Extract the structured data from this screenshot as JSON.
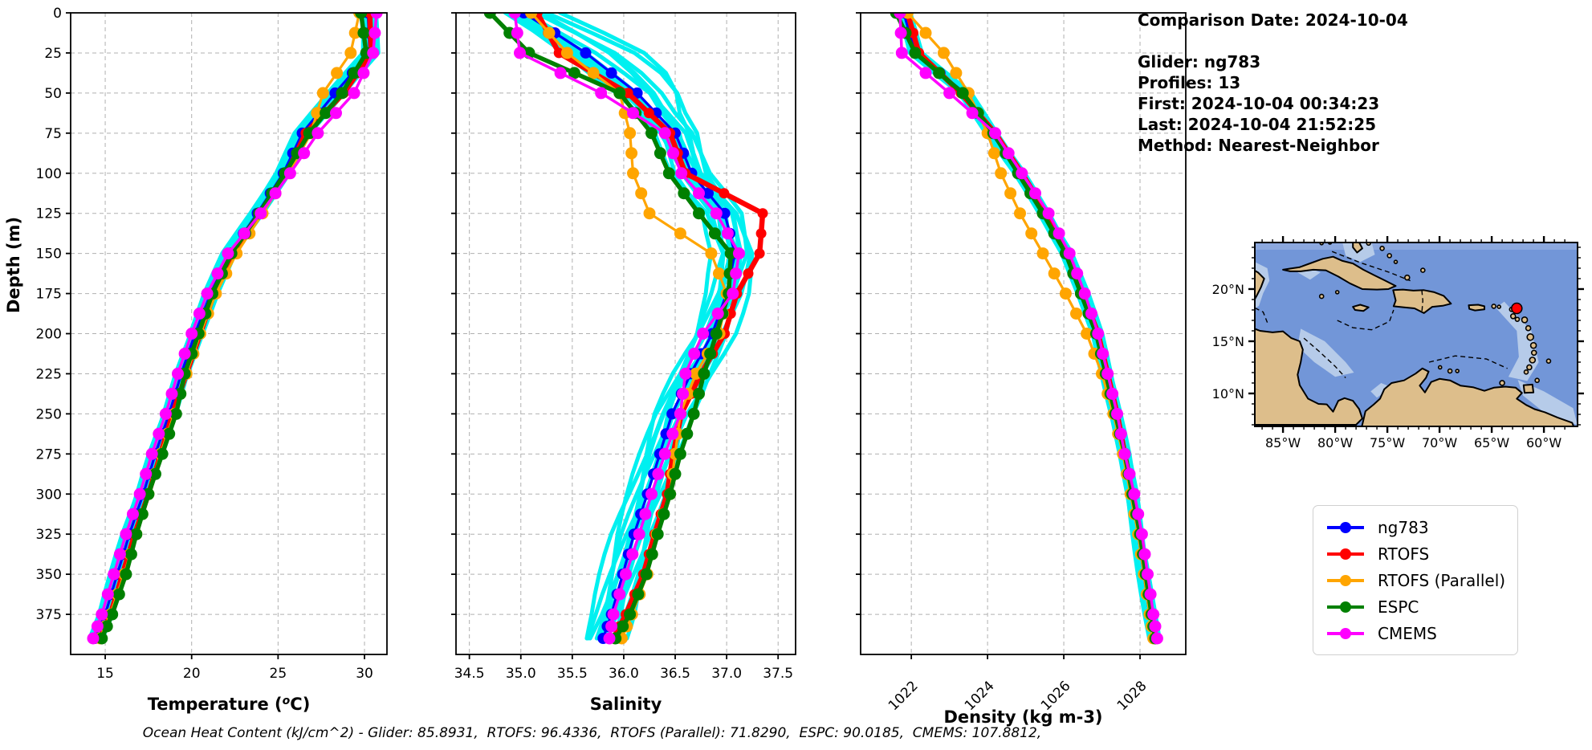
{
  "info_panel": {
    "comparison_date": "Comparison Date: 2024-10-04",
    "glider": "Glider: ng783",
    "profiles": "Profiles: 13",
    "first": "First: 2024-10-04 00:34:23",
    "last": "Last: 2024-10-04 21:52:25",
    "method": "Method: Nearest-Neighbor"
  },
  "footer": {
    "ohc_text": "Ocean Heat Content (kJ/cm^2) - Glider: 85.8931,  RTOFS: 96.4336,  RTOFS (Parallel): 71.8290,  ESPC: 90.0185,  CMEMS: 107.8812,"
  },
  "legend": {
    "items": [
      {
        "label": "ng783",
        "color": "#0000ff"
      },
      {
        "label": "RTOFS",
        "color": "#ff0000"
      },
      {
        "label": "RTOFS (Parallel)",
        "color": "#ffa500"
      },
      {
        "label": "ESPC",
        "color": "#008000"
      },
      {
        "label": "CMEMS",
        "color": "#ff00ff"
      }
    ]
  },
  "map": {
    "lat_tick_labels": [
      "20°N",
      "15°N",
      "10°N"
    ],
    "lat_tick_values": [
      20,
      15,
      10
    ],
    "lon_tick_labels": [
      "85°W",
      "80°W",
      "75°W",
      "70°W",
      "65°W",
      "60°W"
    ],
    "lon_tick_values": [
      85,
      80,
      75,
      70,
      65,
      60
    ],
    "extent": {
      "west": 87.7,
      "east": 56.77,
      "south": 6.85,
      "north": 24.46
    },
    "glider_marker": {
      "lon": 62.6,
      "lat": 18.15,
      "color": "#ff0000"
    },
    "ocean_color": "#7296d8",
    "shallow_color": "#b6cbe9",
    "land_color": "#ddbe8b"
  },
  "chart_data": [
    {
      "type": "line",
      "name": "temperature",
      "xlabel": "Temperature (^oC)",
      "ylabel": "Depth (m)",
      "xlim": [
        13.0,
        31.3
      ],
      "ylim": [
        0,
        400
      ],
      "x_ticks": [
        15,
        20,
        25,
        30
      ],
      "x_tick_labels": [
        "15",
        "20",
        "25",
        "30"
      ],
      "y_ticks": [
        0,
        25,
        50,
        75,
        100,
        125,
        150,
        175,
        200,
        225,
        250,
        275,
        300,
        325,
        350,
        375
      ],
      "rotate_x_tick_labels": false,
      "show_y_tick_labels": true,
      "depths": [
        0,
        25,
        50,
        75,
        100,
        125,
        150,
        175,
        200,
        225,
        250,
        275,
        300,
        325,
        350,
        375,
        390
      ],
      "raw_glider_band": {
        "color": "#00f0f0",
        "profiles": 13,
        "amplitude": 0.3
      },
      "series": [
        {
          "name": "ng783",
          "color": "#0000ff",
          "values": [
            30.2,
            30.3,
            28.3,
            26.4,
            25.3,
            23.8,
            22.2,
            21.1,
            20.2,
            19.4,
            18.7,
            17.9,
            17.2,
            16.4,
            15.7,
            15.0,
            14.4
          ]
        },
        {
          "name": "RTOFS",
          "color": "#ff0000",
          "values": [
            30.3,
            30.4,
            28.8,
            26.6,
            25.5,
            24.0,
            22.4,
            21.3,
            20.5,
            19.7,
            18.9,
            18.2,
            17.5,
            16.7,
            16.0,
            15.3,
            14.7
          ]
        },
        {
          "name": "RTOFS (Parallel)",
          "color": "#ffa500",
          "values": [
            29.7,
            29.2,
            27.6,
            26.9,
            25.6,
            24.1,
            22.6,
            21.4,
            20.5,
            19.7,
            19.0,
            18.2,
            17.5,
            16.8,
            16.1,
            15.3,
            14.7
          ]
        },
        {
          "name": "ESPC",
          "color": "#008000",
          "values": [
            29.8,
            30.1,
            28.7,
            26.8,
            25.4,
            23.9,
            22.3,
            21.2,
            20.4,
            19.6,
            19.1,
            18.3,
            17.5,
            16.8,
            16.2,
            15.4,
            14.8
          ]
        },
        {
          "name": "CMEMS",
          "color": "#ff00ff",
          "values": [
            30.7,
            30.5,
            29.4,
            27.3,
            25.7,
            24.0,
            22.1,
            20.9,
            20.0,
            19.2,
            18.5,
            17.7,
            17.0,
            16.2,
            15.5,
            14.8,
            14.3
          ]
        }
      ]
    },
    {
      "type": "line",
      "name": "salinity",
      "xlabel": "Salinity",
      "ylabel": "",
      "xlim": [
        34.37,
        37.67
      ],
      "ylim": [
        0,
        400
      ],
      "x_ticks": [
        34.5,
        35.0,
        35.5,
        36.0,
        36.5,
        37.0,
        37.5
      ],
      "x_tick_labels": [
        "34.5",
        "35.0",
        "35.5",
        "36.0",
        "36.5",
        "37.0",
        "37.5"
      ],
      "y_ticks": [
        0,
        25,
        50,
        75,
        100,
        125,
        150,
        175,
        200,
        225,
        250,
        275,
        300,
        325,
        350,
        375
      ],
      "rotate_x_tick_labels": false,
      "show_y_tick_labels": false,
      "depths": [
        0,
        25,
        50,
        75,
        100,
        125,
        150,
        175,
        200,
        225,
        250,
        275,
        300,
        325,
        350,
        375,
        390
      ],
      "raw_glider_band": {
        "color": "#00f0f0",
        "profiles": 13,
        "amplitude": 0.16
      },
      "series": [
        {
          "name": "ng783",
          "color": "#0000ff",
          "values": [
            35.03,
            35.63,
            36.13,
            36.5,
            36.66,
            36.98,
            37.08,
            37.0,
            36.86,
            36.65,
            36.47,
            36.35,
            36.23,
            36.1,
            35.99,
            35.88,
            35.8
          ]
        },
        {
          "name": "RTOFS",
          "color": "#ff0000",
          "values": [
            35.16,
            35.37,
            36.04,
            36.45,
            36.6,
            37.35,
            37.32,
            37.1,
            36.98,
            36.75,
            36.56,
            36.48,
            36.42,
            36.3,
            36.19,
            36.02,
            35.9
          ]
        },
        {
          "name": "RTOFS (Parallel)",
          "color": "#ffa500",
          "values": [
            35.1,
            35.45,
            35.96,
            36.06,
            36.09,
            36.25,
            36.85,
            37.0,
            36.93,
            36.7,
            36.55,
            36.5,
            36.45,
            36.32,
            36.23,
            36.08,
            35.98
          ]
        },
        {
          "name": "ESPC",
          "color": "#008000",
          "values": [
            34.7,
            35.08,
            35.96,
            36.27,
            36.44,
            36.73,
            37.04,
            37.02,
            36.9,
            36.78,
            36.68,
            36.55,
            36.45,
            36.33,
            36.22,
            36.06,
            35.92
          ]
        },
        {
          "name": "CMEMS",
          "color": "#ff00ff",
          "values": [
            34.94,
            34.99,
            35.78,
            36.4,
            36.56,
            36.9,
            37.12,
            37.06,
            36.77,
            36.6,
            36.55,
            36.4,
            36.27,
            36.15,
            36.02,
            35.9,
            35.86
          ]
        }
      ]
    },
    {
      "type": "line",
      "name": "density",
      "xlabel": "Density (kg m-3)",
      "ylabel": "",
      "xlim": [
        1020.67,
        1029.2
      ],
      "ylim": [
        0,
        400
      ],
      "x_ticks": [
        1022,
        1024,
        1026,
        1028
      ],
      "x_tick_labels": [
        "1022",
        "1024",
        "1026",
        "1028"
      ],
      "y_ticks": [
        0,
        25,
        50,
        75,
        100,
        125,
        150,
        175,
        200,
        225,
        250,
        275,
        300,
        325,
        350,
        375
      ],
      "rotate_x_tick_labels": true,
      "show_y_tick_labels": false,
      "depths": [
        0,
        25,
        50,
        75,
        100,
        125,
        150,
        175,
        200,
        225,
        250,
        275,
        300,
        325,
        350,
        375,
        390
      ],
      "raw_glider_band": {
        "color": "#00f0f0",
        "profiles": 13,
        "amplitude": 0.11
      },
      "series": [
        {
          "name": "ng783",
          "color": "#0000ff",
          "values": [
            1021.8,
            1022.1,
            1023.4,
            1024.1,
            1024.85,
            1025.5,
            1026.1,
            1026.5,
            1026.85,
            1027.1,
            1027.35,
            1027.6,
            1027.8,
            1027.95,
            1028.1,
            1028.25,
            1028.35
          ]
        },
        {
          "name": "RTOFS",
          "color": "#ff0000",
          "values": [
            1021.9,
            1022.2,
            1023.3,
            1024.2,
            1024.9,
            1025.55,
            1026.1,
            1026.5,
            1026.9,
            1027.15,
            1027.4,
            1027.6,
            1027.8,
            1028.0,
            1028.15,
            1028.3,
            1028.4
          ]
        },
        {
          "name": "RTOFS (Parallel)",
          "color": "#ffa500",
          "values": [
            1021.9,
            1022.85,
            1023.5,
            1024.0,
            1024.35,
            1024.85,
            1025.45,
            1026.05,
            1026.6,
            1027.0,
            1027.3,
            1027.55,
            1027.75,
            1027.95,
            1028.1,
            1028.25,
            1028.35
          ]
        },
        {
          "name": "ESPC",
          "color": "#008000",
          "values": [
            1021.6,
            1022.1,
            1023.35,
            1024.15,
            1024.8,
            1025.45,
            1026.05,
            1026.45,
            1026.85,
            1027.1,
            1027.35,
            1027.6,
            1027.8,
            1028.0,
            1028.15,
            1028.3,
            1028.4
          ]
        },
        {
          "name": "CMEMS",
          "color": "#ff00ff",
          "values": [
            1021.7,
            1021.75,
            1023.0,
            1024.2,
            1024.9,
            1025.6,
            1026.15,
            1026.55,
            1026.9,
            1027.15,
            1027.4,
            1027.6,
            1027.85,
            1028.05,
            1028.2,
            1028.35,
            1028.45
          ]
        }
      ]
    }
  ]
}
